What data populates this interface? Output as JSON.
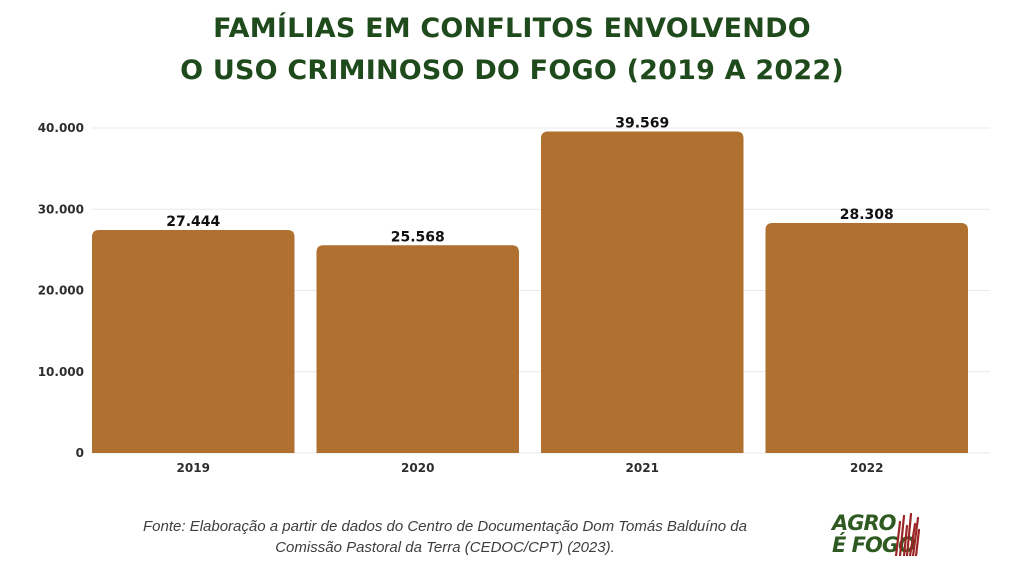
{
  "chart_data": {
    "type": "bar",
    "title_lines": [
      "FAMÍLIAS EM CONFLITOS ENVOLVENDO",
      "O USO CRIMINOSO DO FOGO (2019 A 2022)"
    ],
    "categories": [
      "2019",
      "2020",
      "2021",
      "2022"
    ],
    "values": [
      27444,
      25568,
      39569,
      28308
    ],
    "value_labels": [
      "27.444",
      "25.568",
      "39.569",
      "28.308"
    ],
    "ylim": [
      0,
      40000
    ],
    "yticks": [
      0,
      10000,
      20000,
      30000,
      40000
    ],
    "ytick_labels": [
      "0",
      "10.000",
      "20.000",
      "30.000",
      "40.000"
    ],
    "grid": true,
    "bar_color": "#b07030",
    "title_color": "#1f4a1c"
  },
  "source_note": {
    "line1": "Fonte: Elaboração a partir de dados do Centro de Documentação Dom Tomás Balduíno da",
    "line2": "Comissão Pastoral da Terra (CEDOC/CPT) (2023)."
  },
  "logo": {
    "line1": "AGRO",
    "line2": "É FOGO",
    "color": "#2f5a22",
    "flame_color": "#9a2424"
  }
}
